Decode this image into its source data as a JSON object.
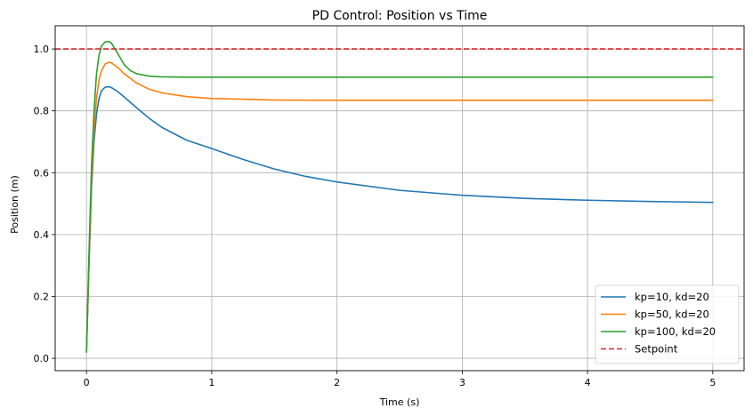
{
  "chart_data": {
    "type": "line",
    "title": "PD Control: Position vs Time",
    "xlabel": "Time (s)",
    "ylabel": "Position (m)",
    "xlim": [
      -0.25,
      5.25
    ],
    "ylim": [
      -0.04,
      1.075
    ],
    "xticks": [
      0,
      1,
      2,
      3,
      4,
      5
    ],
    "xtick_labels": [
      "0",
      "1",
      "2",
      "3",
      "4",
      "5"
    ],
    "yticks": [
      0.0,
      0.2,
      0.4,
      0.6,
      0.8,
      1.0
    ],
    "ytick_labels": [
      "0.0",
      "0.2",
      "0.4",
      "0.6",
      "0.8",
      "1.0"
    ],
    "grid": true,
    "legend_position": "lower-right",
    "series": [
      {
        "name": "kp=10, kd=20",
        "color": "#1f77b4",
        "style": "solid",
        "x": [
          0,
          0.02,
          0.04,
          0.06,
          0.08,
          0.1,
          0.12,
          0.15,
          0.18,
          0.2,
          0.25,
          0.3,
          0.4,
          0.5,
          0.6,
          0.8,
          1.0,
          1.25,
          1.5,
          1.75,
          2.0,
          2.5,
          3.0,
          3.5,
          4.0,
          4.5,
          5.0
        ],
        "y": [
          0.02,
          0.3,
          0.55,
          0.7,
          0.79,
          0.84,
          0.865,
          0.877,
          0.878,
          0.875,
          0.862,
          0.845,
          0.81,
          0.776,
          0.747,
          0.705,
          0.678,
          0.643,
          0.612,
          0.588,
          0.57,
          0.543,
          0.527,
          0.517,
          0.511,
          0.507,
          0.504
        ]
      },
      {
        "name": "kp=50, kd=20",
        "color": "#ff7f0e",
        "style": "solid",
        "x": [
          0,
          0.02,
          0.04,
          0.06,
          0.08,
          0.1,
          0.12,
          0.15,
          0.18,
          0.2,
          0.25,
          0.3,
          0.4,
          0.5,
          0.6,
          0.8,
          1.0,
          1.5,
          2.0,
          3.0,
          4.0,
          5.0
        ],
        "y": [
          0.02,
          0.32,
          0.58,
          0.74,
          0.84,
          0.9,
          0.93,
          0.952,
          0.957,
          0.955,
          0.94,
          0.92,
          0.89,
          0.87,
          0.858,
          0.846,
          0.84,
          0.835,
          0.834,
          0.834,
          0.834,
          0.834
        ]
      },
      {
        "name": "kp=100, kd=20",
        "color": "#2ca02c",
        "style": "solid",
        "x": [
          0,
          0.02,
          0.04,
          0.06,
          0.08,
          0.1,
          0.12,
          0.15,
          0.18,
          0.2,
          0.25,
          0.3,
          0.35,
          0.4,
          0.5,
          0.6,
          0.8,
          1.0,
          2.0,
          3.0,
          4.0,
          5.0
        ],
        "y": [
          0.02,
          0.34,
          0.62,
          0.8,
          0.92,
          0.98,
          1.01,
          1.023,
          1.024,
          1.018,
          0.985,
          0.95,
          0.93,
          0.92,
          0.912,
          0.91,
          0.909,
          0.909,
          0.909,
          0.909,
          0.909,
          0.909
        ]
      },
      {
        "name": "Setpoint",
        "color": "#d62728",
        "style": "dashed",
        "x": [
          -0.25,
          5.25
        ],
        "y": [
          1.0,
          1.0
        ]
      }
    ]
  }
}
